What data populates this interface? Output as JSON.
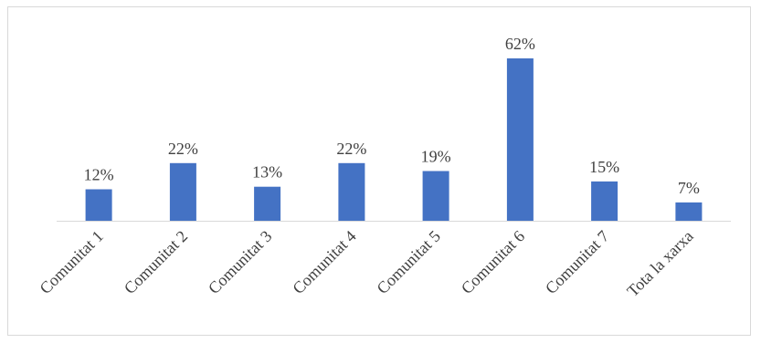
{
  "chart_data": {
    "type": "bar",
    "title": "",
    "xlabel": "",
    "ylabel": "",
    "categories": [
      "Comunitat 1",
      "Comunitat 2",
      "Comunitat 3",
      "Comunitat 4",
      "Comunitat 5",
      "Comunitat 6",
      "Comunitat 7",
      "Tota la xarxa"
    ],
    "values": [
      12,
      22,
      13,
      22,
      19,
      62,
      15,
      7
    ],
    "data_labels": [
      "12%",
      "22%",
      "13%",
      "22%",
      "19%",
      "62%",
      "15%",
      "7%"
    ],
    "ylim": [
      0,
      62
    ],
    "grid": false,
    "legend": "none",
    "colors": {
      "bar": "#4472c4",
      "axis": "#d9d9d9",
      "text": "#404040"
    }
  }
}
